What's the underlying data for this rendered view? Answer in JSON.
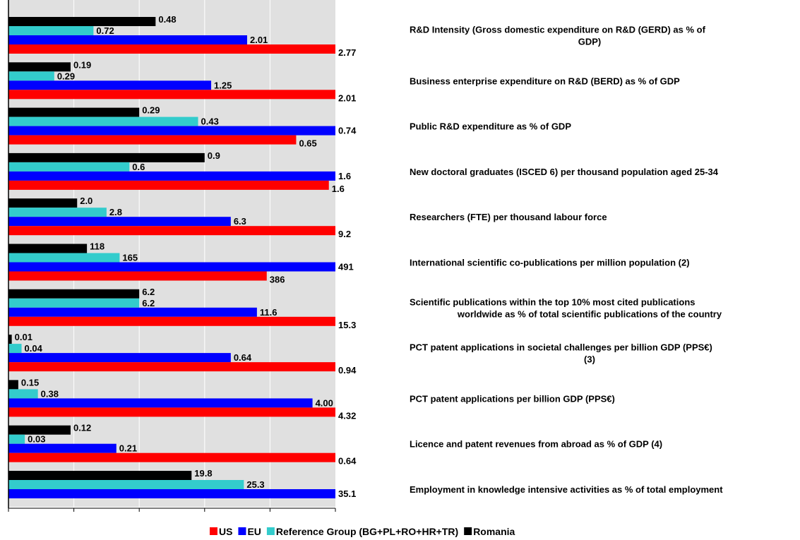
{
  "chart_data": {
    "type": "bar",
    "orientation": "horizontal",
    "grid": true,
    "legend_position": "bottom",
    "categories": [
      "R&D Intensity (Gross domestic expenditure on R&D (GERD) as % of GDP)",
      "Business enterprise expenditure on R&D (BERD) as % of GDP",
      "Public R&D expenditure as % of GDP",
      "New doctoral graduates (ISCED 6) per thousand population aged 25-34",
      "Researchers (FTE) per thousand labour force",
      "International scientific co-publications per million population (2)",
      "Scientific publications within the top 10% most cited publications worldwide as % of total scientific publications of the country",
      "PCT patent applications in societal challenges per billion GDP (PPS€) (3)",
      "PCT patent applications per billion GDP (PPS€)",
      "Licence and patent revenues from abroad as % of GDP (4)",
      "Employment in knowledge intensive activities as % of total employment"
    ],
    "category_lines": [
      [
        "R&D Intensity (Gross domestic expenditure on R&D (GERD) as % of",
        "GDP)"
      ],
      [
        "Business enterprise expenditure on R&D (BERD) as % of GDP"
      ],
      [
        "Public R&D expenditure as % of GDP"
      ],
      [
        "New doctoral graduates (ISCED 6) per thousand population aged 25-34"
      ],
      [
        "Researchers (FTE) per thousand labour force"
      ],
      [
        "International scientific co-publications per million population (2)"
      ],
      [
        "Scientific publications within the top 10% most cited publications",
        "worldwide as % of total scientific publications of the country"
      ],
      [
        "PCT patent applications in societal challenges per billion GDP (PPS€)",
        "(3)"
      ],
      [
        "PCT patent applications per billion GDP (PPS€)"
      ],
      [
        "Licence and patent revenues from abroad as % of GDP (4)"
      ],
      [
        "Employment in knowledge intensive activities as % of total employment"
      ]
    ],
    "series": [
      {
        "name": "Romania",
        "color": "#000000",
        "values": [
          0.48,
          0.19,
          0.29,
          0.9,
          2.0,
          118,
          6.2,
          0.01,
          0.15,
          0.12,
          19.8
        ],
        "labels": [
          "0.48",
          "0.19",
          "0.29",
          "0.9",
          "2.0",
          "118",
          "6.2",
          "0.01",
          "0.15",
          "0.12",
          "19.8"
        ],
        "relative": [
          0.45,
          0.19,
          0.4,
          0.6,
          0.21,
          0.24,
          0.4,
          0.01,
          0.03,
          0.19,
          0.56
        ]
      },
      {
        "name": "Reference Group (BG+PL+RO+HR+TR)",
        "color": "#33CCCC",
        "values": [
          0.72,
          0.29,
          0.43,
          0.6,
          2.8,
          165,
          6.2,
          0.04,
          0.38,
          0.03,
          25.3
        ],
        "labels": [
          "0.72",
          "0.29",
          "0.43",
          "0.6",
          "2.8",
          "165",
          "6.2",
          "0.04",
          "0.38",
          "0.03",
          "25.3"
        ],
        "relative": [
          0.26,
          0.14,
          0.58,
          0.37,
          0.3,
          0.34,
          0.4,
          0.04,
          0.09,
          0.05,
          0.72
        ]
      },
      {
        "name": "EU",
        "color": "#0000FF",
        "values": [
          2.01,
          1.25,
          0.74,
          1.6,
          6.3,
          491,
          11.6,
          0.64,
          4.0,
          0.21,
          35.1
        ],
        "labels": [
          "2.01",
          "1.25",
          "0.74",
          "1.6",
          "6.3",
          "491",
          "11.6",
          "0.64",
          "4.00",
          "0.21",
          "35.1"
        ],
        "relative": [
          0.73,
          0.62,
          1.0,
          1.0,
          0.68,
          1.0,
          0.76,
          0.68,
          0.93,
          0.33,
          1.0
        ]
      },
      {
        "name": "US",
        "color": "#FF0000",
        "values": [
          2.77,
          2.01,
          0.65,
          1.6,
          9.2,
          386,
          15.3,
          0.94,
          4.32,
          0.64,
          null
        ],
        "labels": [
          "2.77",
          "2.01",
          "0.65",
          "1.6",
          "9.2",
          "386",
          "15.3",
          "0.94",
          "4.32",
          "0.64",
          ""
        ],
        "relative": [
          1.0,
          1.0,
          0.88,
          0.98,
          1.0,
          0.79,
          1.0,
          1.0,
          1.0,
          1.0,
          null
        ]
      }
    ],
    "legend": [
      {
        "name": "US",
        "color": "#FF0000"
      },
      {
        "name": "EU",
        "color": "#0000FF"
      },
      {
        "name": "Reference Group (BG+PL+RO+HR+TR)",
        "color": "#33CCCC"
      },
      {
        "name": "Romania",
        "color": "#000000"
      }
    ],
    "colors": {
      "plot_background": "#E0E0E0",
      "gridline": "#FFFFFF",
      "axis": "#000000"
    }
  }
}
